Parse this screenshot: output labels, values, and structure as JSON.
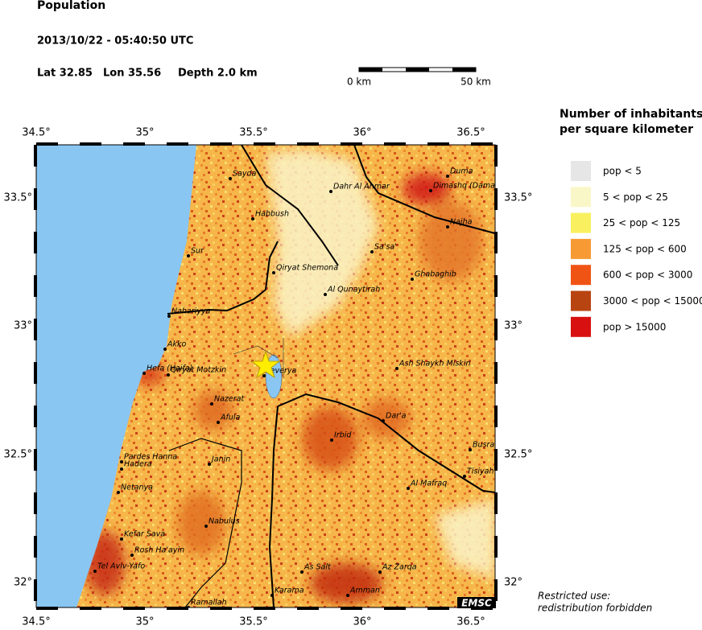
{
  "header": {
    "title": "Population",
    "datetime": "2013/10/22 - 05:40:50 UTC",
    "lat": "Lat 32.85",
    "lon": "Lon  35.56",
    "depth": "Depth  2.0 km"
  },
  "scale_bar": {
    "start": "0 km",
    "end": "50 km"
  },
  "map": {
    "lon_ticks": [
      "34.5°",
      "35°",
      "35.5°",
      "36°",
      "36.5°"
    ],
    "lat_ticks": [
      "33.5°",
      "33°",
      "32.5°",
      "32°"
    ],
    "cities": [
      "Sayda",
      "Dahr Al Ahmar",
      "Duma",
      "Dimashq (Dama",
      "Habbush",
      "Najha",
      "Sur",
      "Sa'sa'",
      "Qiryat Shemona",
      "Ghabaghib",
      "Al Qunaytirah",
      "Nahariyya",
      "Akko",
      "Hefa (Haifa)",
      "Qiryat Motzkin",
      "Teverya",
      "Ash Shaykh Miskin",
      "Nazerat",
      "Dar'a",
      "Afula",
      "Irbid",
      "Busra",
      "Pardes Hanna",
      "Hadera",
      "Janin",
      "Tisiyah",
      "Al Mafraq",
      "Netanya",
      "Nabulus",
      "Kefar Sava",
      "Rosh Ha'ayin",
      "Tel Aviv-Yafo",
      "As Salt",
      "Az Zarqa",
      "Karama",
      "Amman",
      "Ramallah"
    ]
  },
  "legend": {
    "title_line1": "Number of inhabitants",
    "title_line2": "per square kilometer",
    "items": [
      {
        "label": "pop < 5",
        "color": "#e6e6e6"
      },
      {
        "label": "5 < pop < 25",
        "color": "#f9f7c8"
      },
      {
        "label": "25 < pop < 125",
        "color": "#f9f060"
      },
      {
        "label": "125 < pop < 600",
        "color": "#f89a34"
      },
      {
        "label": "600 < pop < 3000",
        "color": "#f05414"
      },
      {
        "label": "3000 < pop < 15000",
        "color": "#b84412"
      },
      {
        "label": "pop > 15000",
        "color": "#d81010"
      }
    ]
  },
  "footer": {
    "badge": "EMSC",
    "note_line1": "Restricted use:",
    "note_line2": "redistribution forbidden"
  }
}
